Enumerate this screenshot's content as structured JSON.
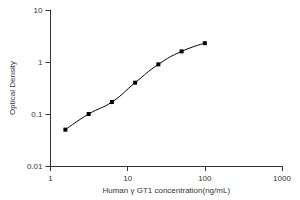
{
  "chart_data": {
    "type": "line",
    "x": [
      1.56,
      3.125,
      6.25,
      12.5,
      25,
      50,
      100
    ],
    "values": [
      0.05,
      0.1,
      0.17,
      0.4,
      0.9,
      1.6,
      2.3
    ],
    "color": "#000000",
    "marker": "square",
    "log": true,
    "xlim": [
      1,
      1000
    ],
    "ylim": [
      0.01,
      10
    ],
    "xticks": [
      1,
      10,
      100,
      1000
    ],
    "yticks": [
      0.01,
      0.1,
      1,
      10
    ],
    "xlabel": "Human γ GT1 concentration(ng/mL)",
    "ylabel": "Optical Density",
    "grid": false
  }
}
